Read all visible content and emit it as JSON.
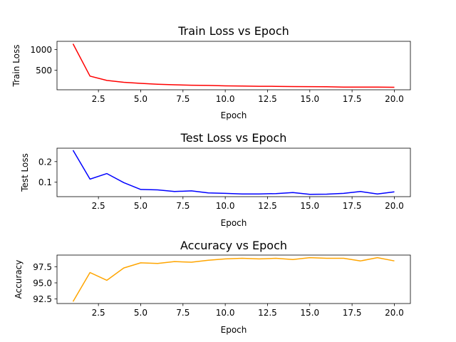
{
  "chart_data": [
    {
      "type": "line",
      "title": "Train Loss vs Epoch",
      "xlabel": "Epoch",
      "ylabel": "Train Loss",
      "color": "#ff0000",
      "xlim": [
        0.05,
        20.95
      ],
      "ylim": [
        30,
        1200
      ],
      "xticks": [
        2.5,
        5.0,
        7.5,
        10.0,
        12.5,
        15.0,
        17.5,
        20.0
      ],
      "xtick_labels": [
        "2.5",
        "5.0",
        "7.5",
        "10.0",
        "12.5",
        "15.0",
        "17.5",
        "20.0"
      ],
      "yticks": [
        500,
        1000
      ],
      "ytick_labels": [
        "500",
        "1000"
      ],
      "x": [
        1,
        2,
        3,
        4,
        5,
        6,
        7,
        8,
        9,
        10,
        11,
        12,
        13,
        14,
        15,
        16,
        17,
        18,
        19,
        20
      ],
      "y": [
        1140,
        360,
        255,
        210,
        185,
        165,
        150,
        140,
        135,
        125,
        120,
        115,
        112,
        108,
        106,
        104,
        95,
        95,
        95,
        90
      ]
    },
    {
      "type": "line",
      "title": "Test Loss vs Epoch",
      "xlabel": "Epoch",
      "ylabel": "Test Loss",
      "color": "#0000ff",
      "xlim": [
        0.05,
        20.95
      ],
      "ylim": [
        0.03,
        0.265
      ],
      "xticks": [
        2.5,
        5.0,
        7.5,
        10.0,
        12.5,
        15.0,
        17.5,
        20.0
      ],
      "xtick_labels": [
        "2.5",
        "5.0",
        "7.5",
        "10.0",
        "12.5",
        "15.0",
        "17.5",
        "20.0"
      ],
      "yticks": [
        0.1,
        0.2
      ],
      "ytick_labels": [
        "0.1",
        "0.2"
      ],
      "x": [
        1,
        2,
        3,
        4,
        5,
        6,
        7,
        8,
        9,
        10,
        11,
        12,
        13,
        14,
        15,
        16,
        17,
        18,
        19,
        20
      ],
      "y": [
        0.255,
        0.115,
        0.142,
        0.098,
        0.065,
        0.063,
        0.055,
        0.058,
        0.048,
        0.046,
        0.043,
        0.043,
        0.045,
        0.05,
        0.041,
        0.042,
        0.046,
        0.055,
        0.043,
        0.053
      ]
    },
    {
      "type": "line",
      "title": "Accuracy vs Epoch",
      "xlabel": "Epoch",
      "ylabel": "Accuracy",
      "color": "#ffa500",
      "xlim": [
        0.05,
        20.95
      ],
      "ylim": [
        91.8,
        99.3
      ],
      "xticks": [
        2.5,
        5.0,
        7.5,
        10.0,
        12.5,
        15.0,
        17.5,
        20.0
      ],
      "xtick_labels": [
        "2.5",
        "5.0",
        "7.5",
        "10.0",
        "12.5",
        "15.0",
        "17.5",
        "20.0"
      ],
      "yticks": [
        92.5,
        95.0,
        97.5
      ],
      "ytick_labels": [
        "92.5",
        "95.0",
        "97.5"
      ],
      "x": [
        1,
        2,
        3,
        4,
        5,
        6,
        7,
        8,
        9,
        10,
        11,
        12,
        13,
        14,
        15,
        16,
        17,
        18,
        19,
        20
      ],
      "y": [
        92.1,
        96.6,
        95.4,
        97.3,
        98.1,
        98.0,
        98.3,
        98.2,
        98.5,
        98.7,
        98.8,
        98.7,
        98.8,
        98.6,
        98.9,
        98.8,
        98.8,
        98.4,
        98.9,
        98.4
      ]
    }
  ]
}
